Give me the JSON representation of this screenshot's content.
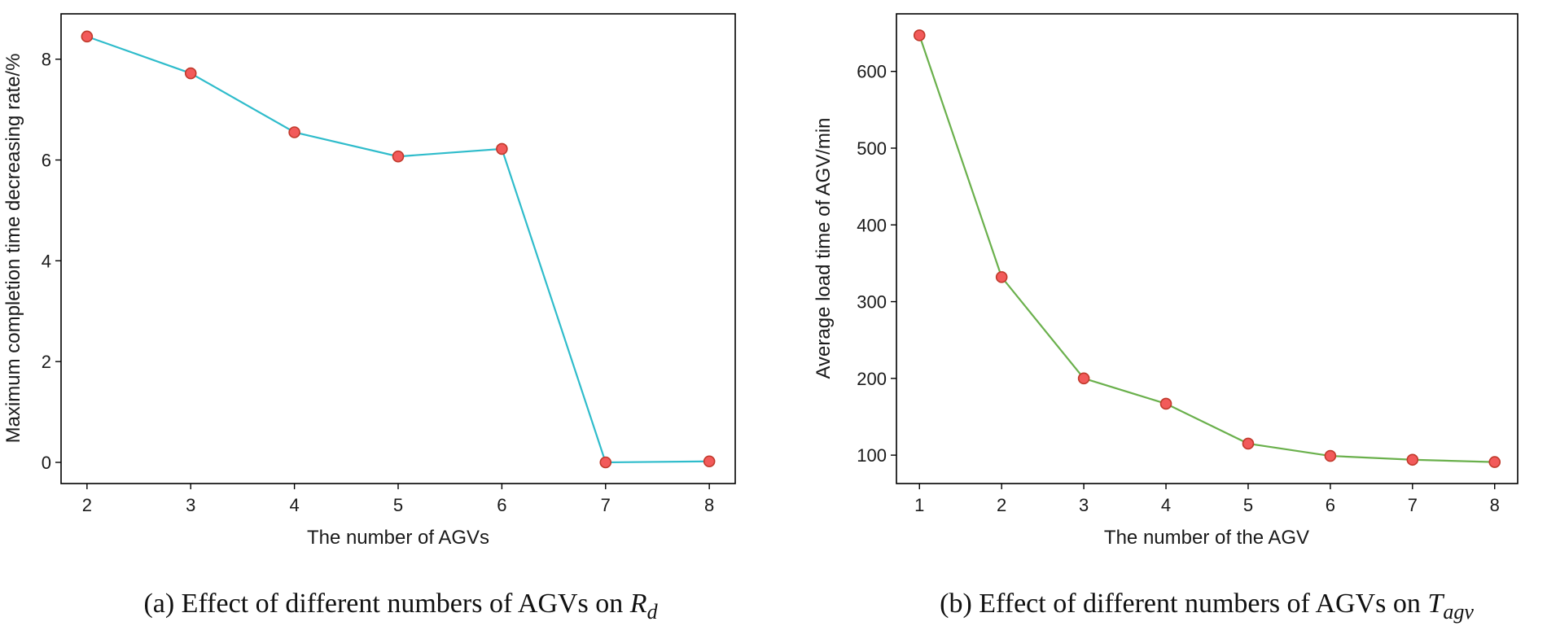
{
  "chart_data": [
    {
      "type": "line",
      "title": "",
      "xlabel": "The number of AGVs",
      "ylabel": "Maximum completion time decreasing rate/%",
      "x": [
        2,
        3,
        4,
        5,
        6,
        7,
        8
      ],
      "y": [
        8.45,
        7.72,
        6.55,
        6.07,
        6.22,
        0.0,
        0.02
      ],
      "xlim": [
        1.75,
        8.25
      ],
      "ylim": [
        -0.42,
        8.9
      ],
      "xticks": [
        2,
        3,
        4,
        5,
        6,
        7,
        8
      ],
      "yticks": [
        0,
        2,
        4,
        6,
        8
      ],
      "line_color": "#2fbccb",
      "marker_color": "#f25a5a",
      "marker_edge": "#c0392b",
      "grid": false,
      "caption": {
        "prefix": "(a) Effect of different numbers of AGVs on ",
        "symbol": "R",
        "subscript": "d"
      }
    },
    {
      "type": "line",
      "title": "",
      "xlabel": "The number of the AGV",
      "ylabel": "Average load time of AGV/min",
      "x": [
        1,
        2,
        3,
        4,
        5,
        6,
        7,
        8
      ],
      "y": [
        647,
        332,
        200,
        167,
        115,
        99,
        94,
        91
      ],
      "xlim": [
        0.72,
        8.28
      ],
      "ylim": [
        63,
        675
      ],
      "xticks": [
        1,
        2,
        3,
        4,
        5,
        6,
        7,
        8
      ],
      "yticks": [
        100,
        200,
        300,
        400,
        500,
        600
      ],
      "line_color": "#6ab04c",
      "marker_color": "#f25a5a",
      "marker_edge": "#c0392b",
      "grid": false,
      "caption": {
        "prefix": "(b) Effect of different numbers of AGVs on ",
        "symbol": "T",
        "subscript": "agv"
      }
    }
  ]
}
